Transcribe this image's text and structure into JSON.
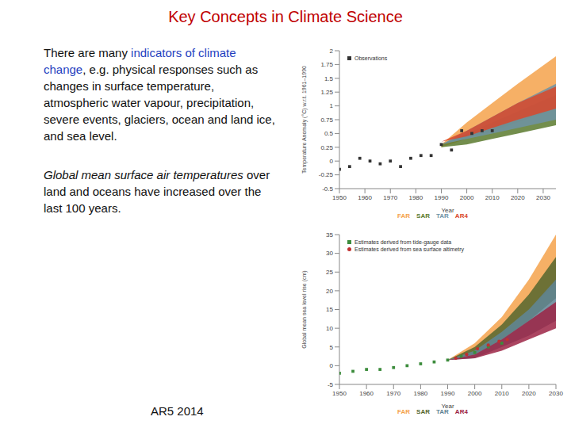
{
  "title": "Key Concepts in Climate Science",
  "paragraphs": [
    [
      {
        "text": "There are many "
      },
      {
        "text": "indicators of climate change",
        "color": "#1f3fbf"
      },
      {
        "text": ", e.g. physical responses such as changes in surface temperature, atmospheric water vapour, precipitation, severe events, glaciers, ocean and land ice, and sea level."
      }
    ],
    [
      {
        "text": "Global mean surface air temperatures",
        "style": "italic"
      },
      {
        "text": " over land and oceans have increased over the last 100 years."
      }
    ]
  ],
  "source": "AR5 2014",
  "chart_data": [
    {
      "type": "area",
      "ylabel": "Temperature Anomaly (°C) w.r.t. 1961–1990",
      "xlabel": "Year",
      "xlim": [
        1950,
        2035
      ],
      "xticks": [
        1950,
        1960,
        1970,
        1980,
        1990,
        2000,
        2010,
        2020,
        2030
      ],
      "ylim": [
        -0.5,
        2
      ],
      "yticks": [
        -0.5,
        -0.25,
        0,
        0.25,
        0.5,
        0.75,
        1,
        1.25,
        1.5,
        1.75,
        2
      ],
      "series": [
        {
          "name": "FAR",
          "type": "area",
          "color": "#f5a24b",
          "x": [
            1990,
            2000,
            2010,
            2020,
            2035
          ],
          "low": [
            0.25,
            0.4,
            0.55,
            0.7,
            0.95
          ],
          "high": [
            0.3,
            0.7,
            1.05,
            1.4,
            1.9
          ]
        },
        {
          "name": "SAR",
          "type": "area",
          "color": "#5b7a2e",
          "x": [
            1990,
            2000,
            2010,
            2020,
            2035
          ],
          "low": [
            0.25,
            0.3,
            0.4,
            0.5,
            0.65
          ],
          "high": [
            0.3,
            0.5,
            0.7,
            0.9,
            1.2
          ]
        },
        {
          "name": "TAR",
          "type": "area",
          "color": "#6f93a6",
          "x": [
            1990,
            2000,
            2010,
            2020,
            2035
          ],
          "low": [
            0.3,
            0.4,
            0.5,
            0.6,
            0.75
          ],
          "high": [
            0.3,
            0.55,
            0.8,
            1.05,
            1.4
          ]
        },
        {
          "name": "AR4",
          "type": "area",
          "color": "#d9482b",
          "x": [
            1990,
            2000,
            2010,
            2020,
            2035
          ],
          "low": [
            0.35,
            0.45,
            0.6,
            0.75,
            0.95
          ],
          "high": [
            0.35,
            0.55,
            0.8,
            1.05,
            1.35
          ]
        },
        {
          "name": "Observations",
          "type": "scatter",
          "marker": "square",
          "color": "#333333",
          "x": [
            1950,
            1954,
            1958,
            1962,
            1966,
            1970,
            1974,
            1978,
            1982,
            1986,
            1990,
            1994,
            1998,
            2002,
            2006,
            2010
          ],
          "values": [
            -0.15,
            -0.1,
            0.05,
            0,
            -0.05,
            0,
            -0.1,
            0.05,
            0.1,
            0.1,
            0.3,
            0.2,
            0.55,
            0.5,
            0.55,
            0.55
          ]
        }
      ]
    },
    {
      "type": "area",
      "ylabel": "Global mean sea level rise (cm)",
      "xlabel": "Year",
      "xlim": [
        1950,
        2030
      ],
      "xticks": [
        1950,
        1960,
        1970,
        1980,
        1990,
        2000,
        2010,
        2020,
        2030
      ],
      "ylim": [
        -5,
        35
      ],
      "yticks": [
        -5,
        0,
        5,
        10,
        15,
        20,
        25,
        30,
        35
      ],
      "series": [
        {
          "name": "FAR",
          "type": "area",
          "color": "#f5a24b",
          "x": [
            1990,
            2000,
            2010,
            2020,
            2030
          ],
          "low": [
            1.5,
            4,
            9,
            15,
            22
          ],
          "high": [
            1.5,
            6,
            13,
            23,
            35
          ]
        },
        {
          "name": "SAR",
          "type": "area",
          "color": "#55662e",
          "x": [
            1990,
            2000,
            2010,
            2020,
            2030
          ],
          "low": [
            1.5,
            3,
            7,
            12,
            18
          ],
          "high": [
            1.5,
            5,
            11,
            19,
            29
          ]
        },
        {
          "name": "TAR",
          "type": "area",
          "color": "#5f8494",
          "x": [
            1990,
            2000,
            2010,
            2020,
            2030
          ],
          "low": [
            1.5,
            2,
            5,
            8,
            12
          ],
          "high": [
            1.5,
            4,
            9,
            15,
            23
          ]
        },
        {
          "name": "AR4",
          "type": "area",
          "color": "#9c2445",
          "x": [
            1990,
            2000,
            2010,
            2020,
            2030
          ],
          "low": [
            1.5,
            2,
            4,
            7,
            10
          ],
          "high": [
            1.5,
            3,
            7,
            12,
            17
          ]
        },
        {
          "name": "Estimates derived from tide-gauge data",
          "type": "scatter",
          "marker": "square",
          "color": "#3c8c3c",
          "x": [
            1950,
            1955,
            1960,
            1965,
            1970,
            1975,
            1980,
            1985,
            1990,
            1995,
            2000,
            2005,
            2010
          ],
          "values": [
            -2,
            -1.5,
            -1,
            -1,
            -0.5,
            0,
            0.5,
            1,
            1.5,
            2.5,
            3.5,
            5,
            6
          ]
        },
        {
          "name": "Estimates derived from sea surface altimetry",
          "type": "scatter",
          "marker": "circle",
          "color": "#c03030",
          "x": [
            1993,
            1997,
            2001,
            2005,
            2009,
            2012
          ],
          "values": [
            2,
            3,
            4.5,
            5.5,
            6.5,
            7
          ]
        }
      ]
    }
  ]
}
